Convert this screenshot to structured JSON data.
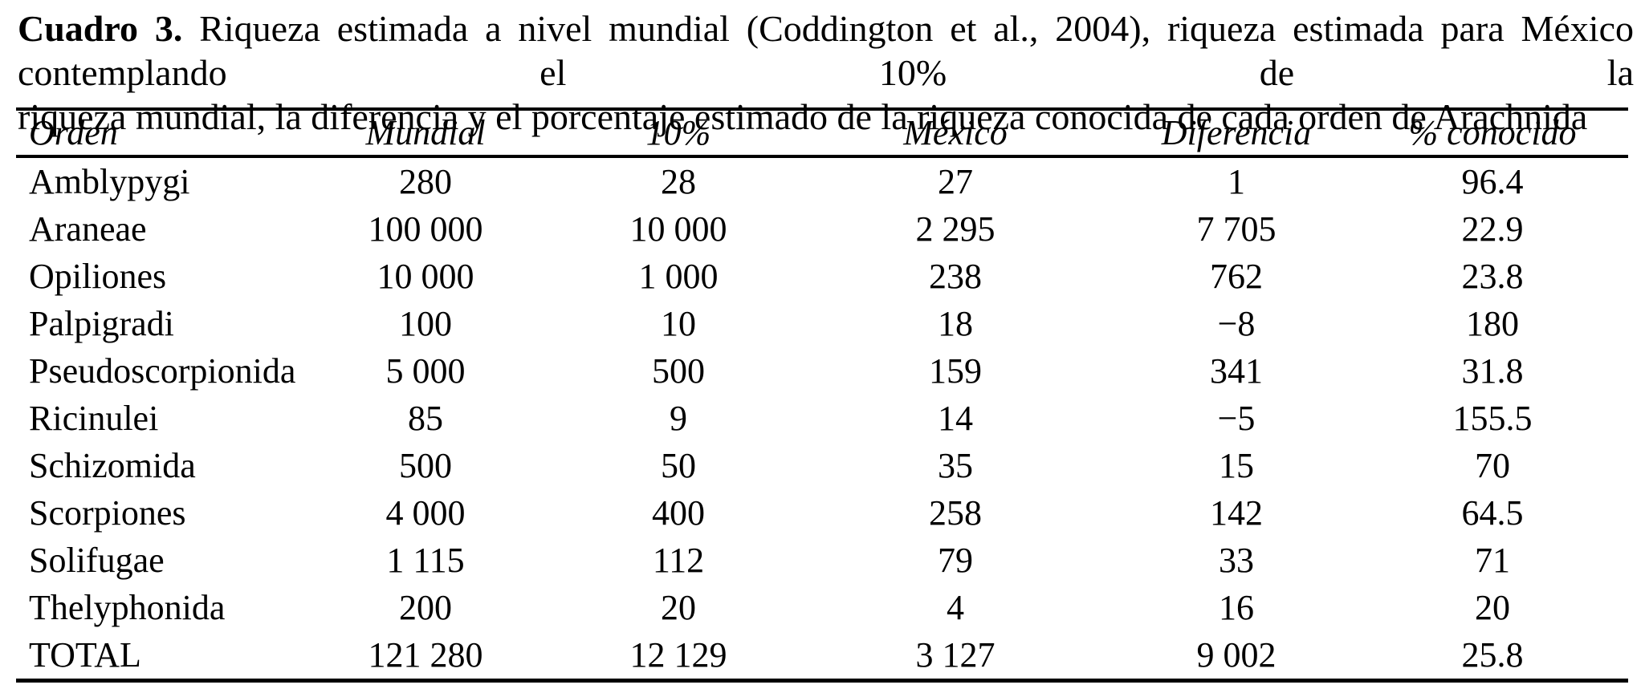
{
  "caption": {
    "label": "Cuadro 3.",
    "line1": "Riqueza estimada a nivel mundial (Coddington et al., 2004), riqueza estimada para México contemplando el 10% de la",
    "line2": "riqueza mundial, la diferencia y el porcentaje estimado de la riqueza conocida de cada orden de Arachnida"
  },
  "table": {
    "columns": [
      "Orden",
      "Mundial",
      "10%",
      "México",
      "Diferencia",
      "% conocido"
    ],
    "rows": [
      [
        "Amblypygi",
        "280",
        "28",
        "27",
        "1",
        "96.4"
      ],
      [
        "Araneae",
        "100 000",
        "10 000",
        "2 295",
        "7 705",
        "22.9"
      ],
      [
        "Opiliones",
        "10 000",
        "1 000",
        "238",
        "762",
        "23.8"
      ],
      [
        "Palpigradi",
        "100",
        "10",
        "18",
        "−8",
        "180"
      ],
      [
        "Pseudoscorpionida",
        "5 000",
        "500",
        "159",
        "341",
        "31.8"
      ],
      [
        "Ricinulei",
        "85",
        "9",
        "14",
        "−5",
        "155.5"
      ],
      [
        "Schizomida",
        "500",
        "50",
        "35",
        "15",
        "70"
      ],
      [
        "Scorpiones",
        "4 000",
        "400",
        "258",
        "142",
        "64.5"
      ],
      [
        "Solifugae",
        "1 115",
        "112",
        "79",
        "33",
        "71"
      ],
      [
        "Thelyphonida",
        "200",
        "20",
        "4",
        "16",
        "20"
      ],
      [
        "TOTAL",
        "121 280",
        "12 129",
        "3 127",
        "9 002",
        "25.8"
      ]
    ]
  }
}
